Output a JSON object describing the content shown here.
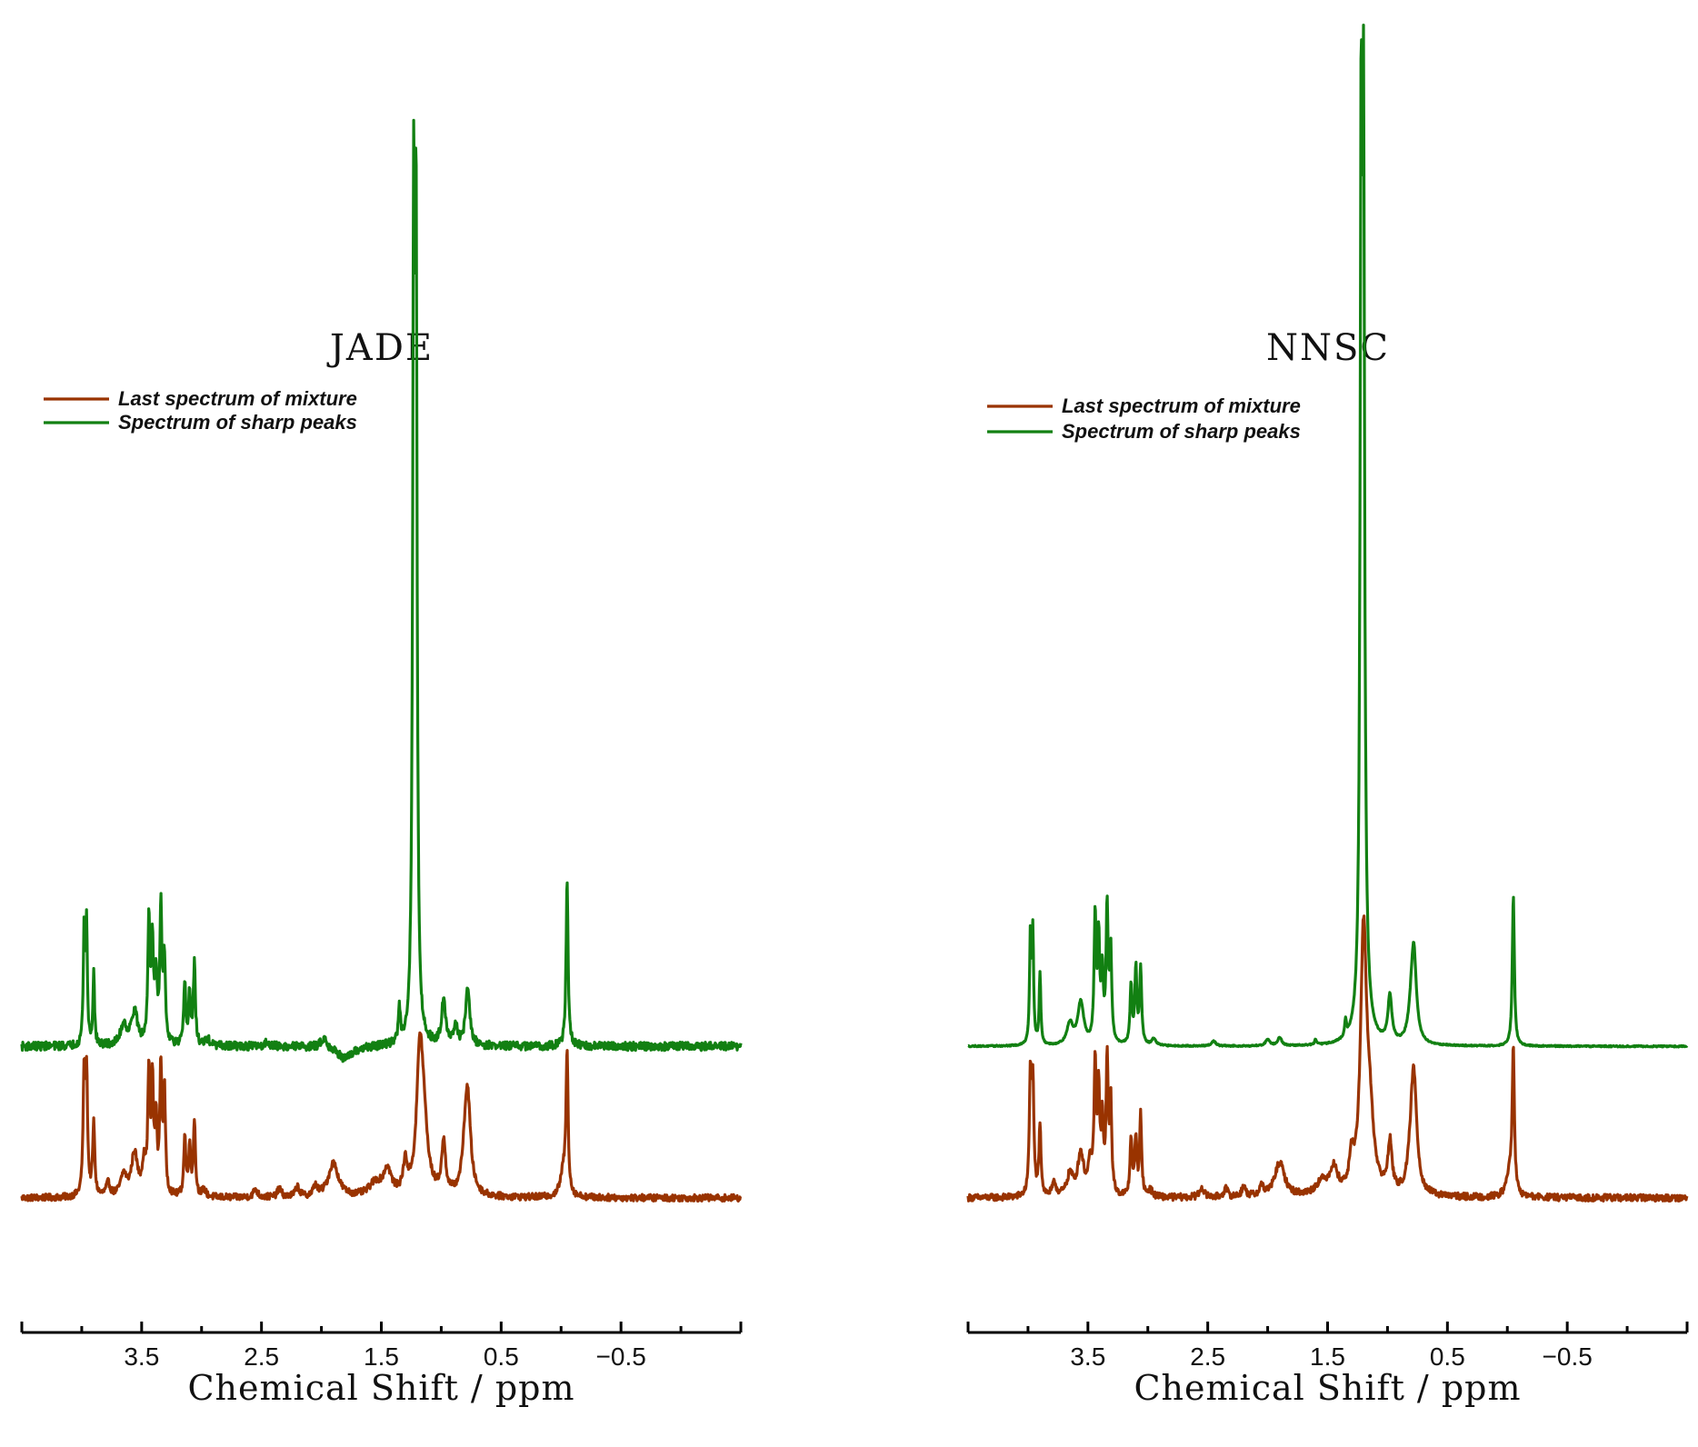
{
  "colors": {
    "mixture": "#993300",
    "sharp": "#128012"
  },
  "chart_data": [
    {
      "type": "line",
      "title": "JADE",
      "xlabel": "Chemical Shift / ppm",
      "ylabel": "",
      "xlim": [
        4.5,
        -1.5
      ],
      "xticks": [
        3.5,
        2.5,
        1.5,
        0.5,
        -0.5
      ],
      "xtick_labels": [
        "3.5",
        "2.5",
        "1.5",
        "0.5",
        "−0.5"
      ],
      "ylim": [
        -0.2,
        1.0
      ],
      "grid": false,
      "legend_position": "top-left",
      "series": [
        {
          "name": "Last spectrum of mixture",
          "color_key": "mixture",
          "baseline": 0.0,
          "noise": 0.004,
          "peaks": [
            [
              3.98,
              0.14,
              0.01
            ],
            [
              3.96,
              0.14,
              0.01
            ],
            [
              3.9,
              0.085,
              0.01
            ],
            [
              3.78,
              0.015,
              0.02
            ],
            [
              3.65,
              0.025,
              0.03
            ],
            [
              3.56,
              0.05,
              0.03
            ],
            [
              3.48,
              0.035,
              0.02
            ],
            [
              3.44,
              0.14,
              0.01
            ],
            [
              3.41,
              0.13,
              0.01
            ],
            [
              3.38,
              0.085,
              0.01
            ],
            [
              3.34,
              0.15,
              0.01
            ],
            [
              3.31,
              0.12,
              0.01
            ],
            [
              3.14,
              0.07,
              0.01
            ],
            [
              3.1,
              0.06,
              0.01
            ],
            [
              3.06,
              0.09,
              0.01
            ],
            [
              2.98,
              0.008,
              0.02
            ],
            [
              2.55,
              0.01,
              0.02
            ],
            [
              2.35,
              0.01,
              0.02
            ],
            [
              2.2,
              0.012,
              0.02
            ],
            [
              2.05,
              0.012,
              0.02
            ],
            [
              1.9,
              0.04,
              0.05
            ],
            [
              1.55,
              0.015,
              0.06
            ],
            [
              1.45,
              0.03,
              0.04
            ],
            [
              1.3,
              0.035,
              0.02
            ],
            [
              1.18,
              0.14,
              0.03
            ],
            [
              1.15,
              0.08,
              0.04
            ],
            [
              0.98,
              0.06,
              0.02
            ],
            [
              0.8,
              0.03,
              0.03
            ],
            [
              0.78,
              0.11,
              0.03
            ],
            [
              -0.05,
              0.165,
              0.01
            ],
            [
              -0.02,
              0.03,
              0.03
            ]
          ]
        },
        {
          "name": "Spectrum of sharp peaks",
          "color_key": "sharp",
          "baseline": 0.18,
          "noise": 0.005,
          "peaks": [
            [
              3.98,
              0.14,
              0.008
            ],
            [
              3.96,
              0.14,
              0.008
            ],
            [
              3.9,
              0.085,
              0.008
            ],
            [
              3.65,
              0.025,
              0.03
            ],
            [
              3.56,
              0.04,
              0.03
            ],
            [
              3.44,
              0.15,
              0.01
            ],
            [
              3.41,
              0.12,
              0.01
            ],
            [
              3.38,
              0.08,
              0.01
            ],
            [
              3.34,
              0.16,
              0.01
            ],
            [
              3.31,
              0.1,
              0.01
            ],
            [
              3.14,
              0.07,
              0.01
            ],
            [
              3.1,
              0.06,
              0.01
            ],
            [
              3.06,
              0.095,
              0.01
            ],
            [
              2.95,
              0.008,
              0.02
            ],
            [
              2.45,
              0.006,
              0.02
            ],
            [
              1.98,
              0.012,
              0.03
            ],
            [
              1.8,
              -0.015,
              0.08
            ],
            [
              1.35,
              0.04,
              0.01
            ],
            [
              1.23,
              0.92,
              0.01
            ],
            [
              1.21,
              0.9,
              0.01
            ],
            [
              0.98,
              0.055,
              0.02
            ],
            [
              0.88,
              0.02,
              0.02
            ],
            [
              0.78,
              0.07,
              0.02
            ],
            [
              -0.05,
              0.195,
              0.01
            ]
          ]
        }
      ]
    },
    {
      "type": "line",
      "title": "NNSC",
      "xlabel": "Chemical Shift / ppm",
      "ylabel": "",
      "xlim": [
        4.5,
        -1.5
      ],
      "xticks": [
        3.5,
        2.5,
        1.5,
        0.5,
        -0.5
      ],
      "xtick_labels": [
        "3.5",
        "2.5",
        "1.5",
        "0.5",
        "−0.5"
      ],
      "ylim": [
        -0.2,
        1.0
      ],
      "grid": false,
      "legend_position": "top-left",
      "series": [
        {
          "name": "Last spectrum of mixture",
          "color_key": "mixture",
          "baseline": 0.0,
          "noise": 0.004,
          "peaks": [
            [
              3.98,
              0.14,
              0.01
            ],
            [
              3.96,
              0.13,
              0.01
            ],
            [
              3.9,
              0.085,
              0.01
            ],
            [
              3.78,
              0.015,
              0.02
            ],
            [
              3.65,
              0.025,
              0.03
            ],
            [
              3.56,
              0.05,
              0.03
            ],
            [
              3.48,
              0.035,
              0.02
            ],
            [
              3.44,
              0.15,
              0.01
            ],
            [
              3.41,
              0.12,
              0.01
            ],
            [
              3.38,
              0.085,
              0.01
            ],
            [
              3.34,
              0.16,
              0.01
            ],
            [
              3.31,
              0.11,
              0.01
            ],
            [
              3.14,
              0.07,
              0.01
            ],
            [
              3.1,
              0.07,
              0.01
            ],
            [
              3.06,
              0.095,
              0.01
            ],
            [
              2.98,
              0.008,
              0.02
            ],
            [
              2.55,
              0.012,
              0.02
            ],
            [
              2.35,
              0.01,
              0.02
            ],
            [
              2.2,
              0.012,
              0.02
            ],
            [
              2.05,
              0.012,
              0.02
            ],
            [
              1.9,
              0.04,
              0.05
            ],
            [
              1.55,
              0.015,
              0.06
            ],
            [
              1.45,
              0.03,
              0.04
            ],
            [
              1.3,
              0.035,
              0.02
            ],
            [
              1.2,
              0.3,
              0.03
            ],
            [
              1.15,
              0.08,
              0.04
            ],
            [
              0.98,
              0.06,
              0.02
            ],
            [
              0.8,
              0.03,
              0.03
            ],
            [
              0.78,
              0.13,
              0.03
            ],
            [
              -0.05,
              0.17,
              0.01
            ],
            [
              -0.02,
              0.03,
              0.03
            ]
          ]
        },
        {
          "name": "Spectrum of  sharp peaks",
          "color_key": "sharp",
          "baseline": 0.18,
          "noise": 0.0008,
          "peaks": [
            [
              3.98,
              0.13,
              0.008
            ],
            [
              3.96,
              0.13,
              0.008
            ],
            [
              3.9,
              0.085,
              0.008
            ],
            [
              3.65,
              0.025,
              0.03
            ],
            [
              3.56,
              0.05,
              0.03
            ],
            [
              3.44,
              0.15,
              0.01
            ],
            [
              3.41,
              0.12,
              0.01
            ],
            [
              3.38,
              0.08,
              0.01
            ],
            [
              3.34,
              0.16,
              0.01
            ],
            [
              3.31,
              0.11,
              0.01
            ],
            [
              3.14,
              0.07,
              0.01
            ],
            [
              3.1,
              0.09,
              0.01
            ],
            [
              3.06,
              0.09,
              0.01
            ],
            [
              2.95,
              0.008,
              0.02
            ],
            [
              2.45,
              0.006,
              0.02
            ],
            [
              2.0,
              0.008,
              0.02
            ],
            [
              1.9,
              0.01,
              0.02
            ],
            [
              1.6,
              0.006,
              0.01
            ],
            [
              1.35,
              0.02,
              0.008
            ],
            [
              1.22,
              0.96,
              0.01
            ],
            [
              1.2,
              0.94,
              0.01
            ],
            [
              1.2,
              0.08,
              0.04
            ],
            [
              0.98,
              0.055,
              0.02
            ],
            [
              0.8,
              0.03,
              0.03
            ],
            [
              0.78,
              0.1,
              0.025
            ],
            [
              -0.05,
              0.18,
              0.01
            ]
          ]
        }
      ]
    }
  ]
}
